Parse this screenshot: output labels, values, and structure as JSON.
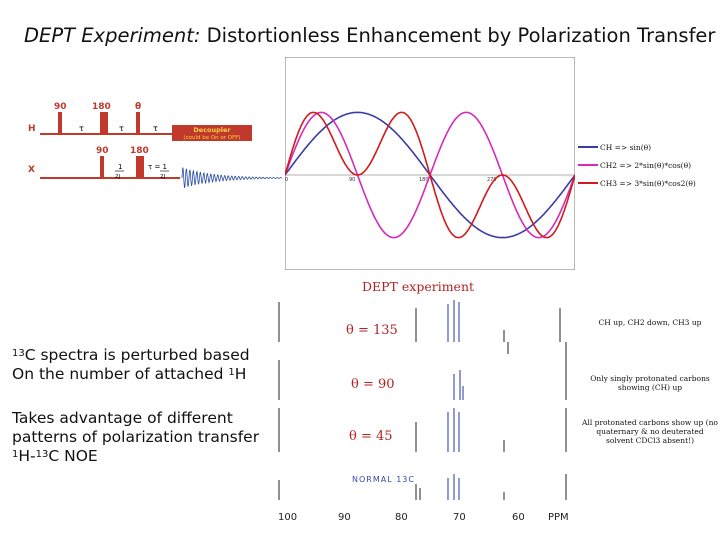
{
  "title": {
    "italic": "DEPT Experiment:",
    "rest": "Distortionless Enhancement by Polarization Transfer"
  },
  "pulse_sequence": {
    "h_channel": "H",
    "x_channel": "X",
    "h_pulses": [
      "90",
      "180",
      "θ"
    ],
    "h_delays": [
      "τ",
      "τ",
      "τ"
    ],
    "x_pulses": [
      "90",
      "180"
    ],
    "x_delay_1": "1",
    "x_delay_1_den": "2J",
    "x_delay_2": "τ = 1",
    "x_delay_2_den": "2J",
    "decoupler_line1": "Decoupler",
    "decoupler_line2": "(could be On or OFF)"
  },
  "wave_plot": {
    "x_ticks": [
      "0",
      "90",
      "180",
      "270"
    ],
    "legend": [
      {
        "text": "CH => sin(θ)",
        "color": "#3b3ba8"
      },
      {
        "text": "CH2 => 2*sin(θ)*cos(θ)",
        "color": "#d62ab8"
      },
      {
        "text": "CH3 => 3*sin(θ)*cos2(θ)",
        "color": "#d11a1a"
      }
    ],
    "colors": {
      "ch": "#3b3ba8",
      "ch2": "#d62ab8",
      "ch3": "#d11a1a"
    }
  },
  "dept_title": "DEPT experiment",
  "spectra": {
    "panels": [
      {
        "theta": "θ = 135",
        "note": "CH up, CH2 down, CH3 up"
      },
      {
        "theta": "θ = 90",
        "note": "Only singly protonated carbons showing (CH) up"
      },
      {
        "theta": "θ = 45",
        "note": "All protonated carbons show up (no quaternary & no deuterated solvent CDCl3 absent!)"
      },
      {
        "theta": "NORMAL 13C",
        "note": ""
      }
    ],
    "x_ticks": [
      "100",
      "90",
      "80",
      "70",
      "60",
      "PPM"
    ]
  },
  "text_block_1": {
    "line1_sup": "13",
    "line1_rest": "C spectra is perturbed based",
    "line2_pre": "On the number of attached ",
    "line2_sup": "1",
    "line2_post": "H"
  },
  "text_block_2": {
    "line1": "Takes advantage of different",
    "line2": "patterns of polarization transfer",
    "line3_sup1": "1",
    "line3_mid": "H-",
    "line3_sup2": "13",
    "line3_post": "C NOE"
  }
}
